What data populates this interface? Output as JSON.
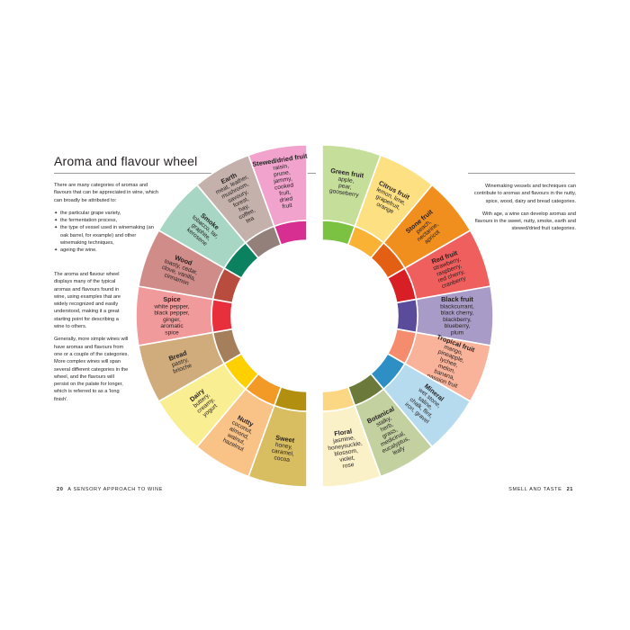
{
  "left_page": {
    "title": "Aroma and flavour wheel",
    "intro": "There are many categories of aromas and flavours that can be appreciated in wine, which can broadly be attributed to:",
    "bullets": [
      "the particular grape variety,",
      "the fermentation process,",
      "the type of vessel used in winemaking (an oak barrel, for example) and other winemaking techniques,",
      "ageing the wine."
    ],
    "para2": "The aroma and flavour wheel displays many of the typical aromas and flavours found in wine, using examples that are widely recognized and easily understood, making it a great starting point for describing a wine to others.",
    "para3": "Generally, more simple wines will have aromas and flavours from one or a couple of the categories. More complex wines will span several different categories in the wheel, and the flavours will persist on the palate for longer, which is referred to as a 'long finish'.",
    "folio_number": "20",
    "folio_text": "A SENSORY APPROACH TO WINE"
  },
  "right_page": {
    "para1": "Winemaking vessels and techniques can contribute to aromas and flavours in the nutty, spice, wood, dairy and bread categories.",
    "para2": "With age, a wine can develop aromas and flavours in the sweet, nutty, smoke, earth and stewed/dried fruit categories.",
    "folio_text": "SMELL AND TASTE",
    "folio_number": "21"
  },
  "wheel": {
    "categories": [
      {
        "name": "Green fruit",
        "examples": [
          "apple,",
          "pear,",
          "gooseberry"
        ],
        "color": "#c5df9a",
        "accent": "#7cc242"
      },
      {
        "name": "Citrus fruit",
        "examples": [
          "lemon, lime,",
          "grapefruit,",
          "orange"
        ],
        "color": "#fde081",
        "accent": "#f9b233"
      },
      {
        "name": "Stone fruit",
        "examples": [
          "peach,",
          "nectarine,",
          "apricot"
        ],
        "color": "#f18f1e",
        "accent": "#e25f13"
      },
      {
        "name": "Red fruit",
        "examples": [
          "strawberry,",
          "raspberry,",
          "red cherry,",
          "cranberry"
        ],
        "color": "#ee5f5d",
        "accent": "#d81f26"
      },
      {
        "name": "Black fruit",
        "examples": [
          "blackcurrant,",
          "black cherry,",
          "blackberry,",
          "blueberry,",
          "plum"
        ],
        "color": "#a89bc7",
        "accent": "#5b4b9b"
      },
      {
        "name": "Tropical fruit",
        "examples": [
          "mango,",
          "pineapple,",
          "lychee,",
          "melon,",
          "banana,",
          "passion fruit"
        ],
        "color": "#f9b39a",
        "accent": "#f68c6e"
      },
      {
        "name": "Mineral",
        "examples": [
          "wet stone,",
          "saline,",
          "chalk, flint,",
          "iron, gravel"
        ],
        "color": "#b6dbef",
        "accent": "#2d8fc4"
      },
      {
        "name": "Botanical",
        "examples": [
          "stalky,",
          "herb,",
          "grass,",
          "medicinal,",
          "eucalyptus,",
          "leafy"
        ],
        "color": "#c3d1a0",
        "accent": "#6b7a3a"
      },
      {
        "name": "Floral",
        "examples": [
          "jasmine,",
          "honeysuckle,",
          "blossom,",
          "violet,",
          "rose"
        ],
        "color": "#fbf1c9",
        "accent": "#fcd783"
      },
      {
        "name": "Sweet",
        "examples": [
          "honey,",
          "caramel,",
          "cocoa"
        ],
        "color": "#d8bd61",
        "accent": "#b38f10"
      },
      {
        "name": "Nutty",
        "examples": [
          "coconut,",
          "almond,",
          "walnut,",
          "hazelnut"
        ],
        "color": "#f9c287",
        "accent": "#f39a26"
      },
      {
        "name": "Dairy",
        "examples": [
          "buttery,",
          "creamy,",
          "yogurt"
        ],
        "color": "#faee93",
        "accent": "#ffd000"
      },
      {
        "name": "Bread",
        "examples": [
          "pastry,",
          "brioche"
        ],
        "color": "#d0ac7d",
        "accent": "#a57f5c"
      },
      {
        "name": "Spice",
        "examples": [
          "white pepper,",
          "black pepper,",
          "ginger,",
          "aromatic",
          "spice"
        ],
        "color": "#f19a9b",
        "accent": "#e8303c"
      },
      {
        "name": "Wood",
        "examples": [
          "toasty, cedar,",
          "clove, vanilla,",
          "cinnamon"
        ],
        "color": "#cf8c89",
        "accent": "#b84c3e"
      },
      {
        "name": "Smoke",
        "examples": [
          "tobacco, tar,",
          "graphite,",
          "kerosene"
        ],
        "color": "#a7d6c4",
        "accent": "#0b8160"
      },
      {
        "name": "Earth",
        "examples": [
          "meat, leather,",
          "mushroom,",
          "savoury,",
          "forest,",
          "hay,",
          "coffee,",
          "tea"
        ],
        "color": "#c4b1ab",
        "accent": "#94807b"
      },
      {
        "name": "Stewed/dried fruit",
        "examples": [
          "raisin,",
          "prune,",
          "jammy,",
          "cooked",
          "fruit,",
          "dried",
          "fruit"
        ],
        "color": "#f2a3cd",
        "accent": "#d62f91"
      }
    ]
  }
}
